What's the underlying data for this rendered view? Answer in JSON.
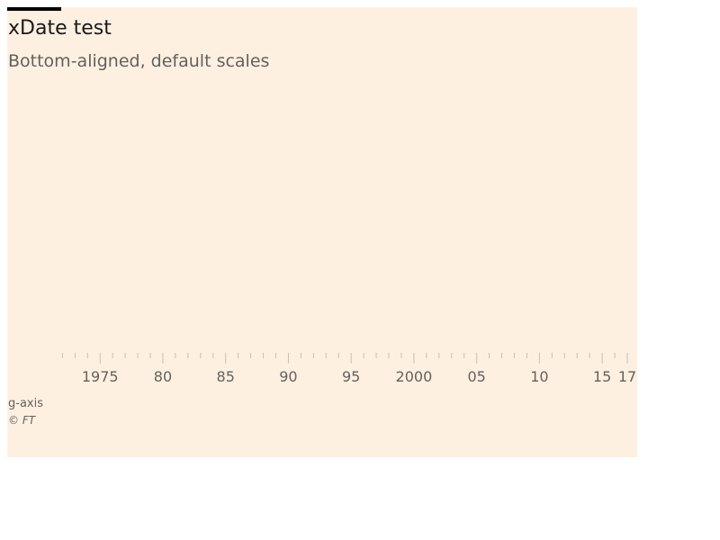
{
  "chart_data": {
    "type": "line",
    "title": "xDate test",
    "subtitle": "Bottom-aligned, default scales",
    "x_axis": {
      "scale": "time",
      "range": [
        "1970",
        "2017"
      ],
      "major_ticks": [
        {
          "year": 1975,
          "label": "1975"
        },
        {
          "year": 1980,
          "label": "80"
        },
        {
          "year": 1985,
          "label": "85"
        },
        {
          "year": 1990,
          "label": "90"
        },
        {
          "year": 1995,
          "label": "95"
        },
        {
          "year": 2000,
          "label": "2000"
        },
        {
          "year": 2005,
          "label": "05"
        },
        {
          "year": 2010,
          "label": "10"
        },
        {
          "year": 2015,
          "label": "15"
        },
        {
          "year": 2017,
          "label": "17"
        }
      ],
      "minor_tick_years": [
        1972,
        1973,
        1974,
        1976,
        1977,
        1978,
        1979,
        1981,
        1982,
        1983,
        1984,
        1986,
        1987,
        1988,
        1989,
        1991,
        1992,
        1993,
        1994,
        1996,
        1997,
        1998,
        1999,
        2001,
        2002,
        2003,
        2004,
        2006,
        2007,
        2008,
        2009,
        2011,
        2012,
        2013,
        2014,
        2016
      ],
      "position": "bottom"
    },
    "series": []
  },
  "footer": {
    "note": "g-axis",
    "source": "© FT"
  },
  "colors": {
    "background": "#fdf0e1",
    "tick": "#c8bfb6",
    "label": "#66605c",
    "title": "#1a1a1a"
  }
}
